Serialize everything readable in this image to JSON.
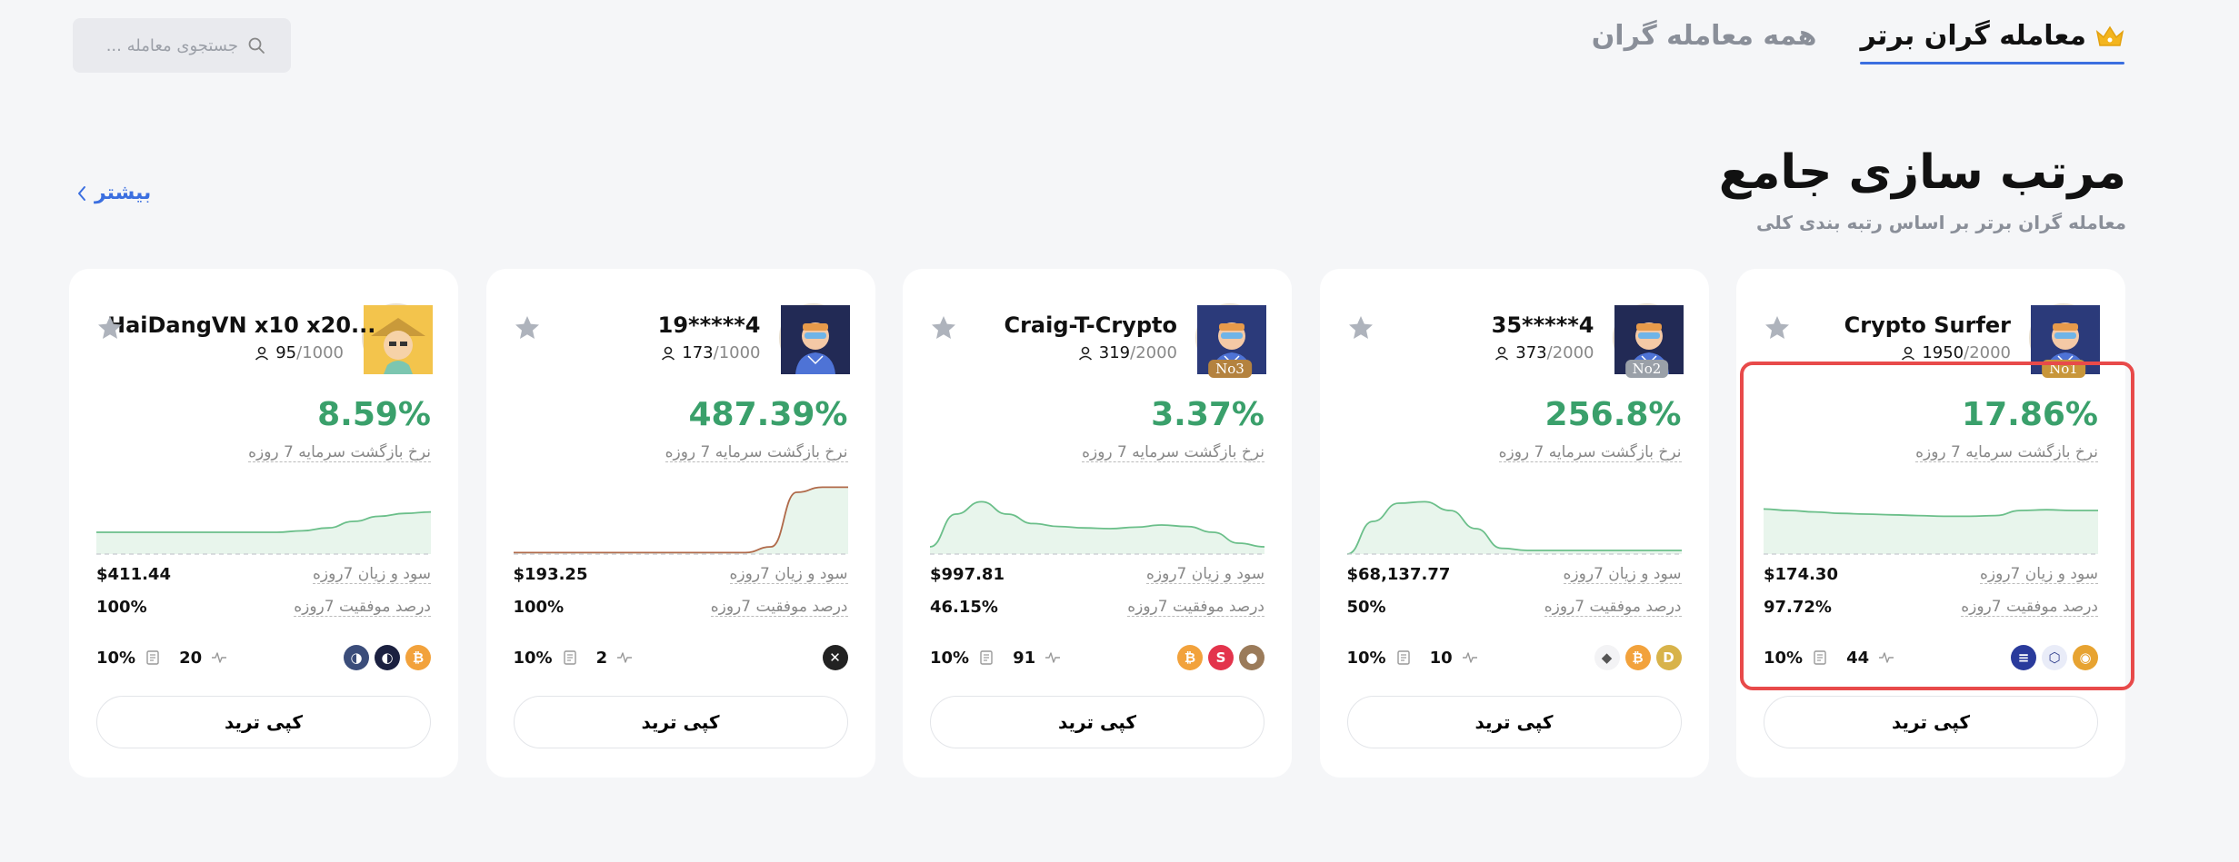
{
  "header": {
    "tabs": [
      {
        "label": "معامله گران برتر",
        "active": true,
        "icon": "crown-icon"
      },
      {
        "label": "همه معامله گران",
        "active": false
      }
    ],
    "search_placeholder": "جستجوی معامله ..."
  },
  "section": {
    "title": "مرتب سازی جامع",
    "subtitle": "معامله گران برتر بر اساس رتبه بندی کلی",
    "more_label": "بیشتر"
  },
  "labels": {
    "roi": "نرخ بازگشت سرمایه 7 روزه",
    "pnl": "سود و زیان 7روزه",
    "win_rate": "درصد موفقیت 7روزه",
    "copy": "کپی ترید"
  },
  "traders": [
    {
      "name": "Crypto Surfer",
      "followers": "1950",
      "max": "/2000",
      "badge": "No1",
      "roi": "17.86%",
      "pnl": "$174.30",
      "win": "97.72%",
      "share": "10%",
      "trades": "44",
      "coins": [
        "ring-coin",
        "shield-coin",
        "solana-coin"
      ],
      "avatar_bg": "#2b3a7a",
      "spark": [
        0.62,
        0.6,
        0.58,
        0.56,
        0.55,
        0.54,
        0.53,
        0.52,
        0.52,
        0.53,
        0.6,
        0.61,
        0.6,
        0.6
      ]
    },
    {
      "name": "35*****4",
      "followers": "373",
      "max": "/2000",
      "badge": "No2",
      "roi": "256.8%",
      "pnl": "$68,137.77",
      "win": "50%",
      "share": "10%",
      "trades": "10",
      "coins": [
        "dogecoin",
        "bitcoin",
        "ethereum"
      ],
      "avatar_bg": "#222a55",
      "spark": [
        0.0,
        0.45,
        0.7,
        0.72,
        0.6,
        0.35,
        0.08,
        0.05,
        0.05,
        0.05,
        0.05,
        0.05,
        0.05,
        0.05
      ]
    },
    {
      "name": "Craig-T-Crypto",
      "followers": "319",
      "max": "/2000",
      "badge": "No3",
      "roi": "3.37%",
      "pnl": "$997.81",
      "win": "46.15%",
      "share": "10%",
      "trades": "91",
      "coins": [
        "avatar-coin",
        "s-coin",
        "bitcoin"
      ],
      "avatar_bg": "#2b3a7a",
      "spark": [
        0.1,
        0.55,
        0.72,
        0.55,
        0.42,
        0.38,
        0.36,
        0.35,
        0.37,
        0.4,
        0.38,
        0.3,
        0.15,
        0.1
      ]
    },
    {
      "name": "19*****4",
      "followers": "173",
      "max": "/1000",
      "badge": "",
      "roi": "487.39%",
      "pnl": "$193.25",
      "win": "100%",
      "share": "10%",
      "trades": "2",
      "coins": [
        "x-coin"
      ],
      "avatar_bg": "#222a55",
      "spark": [
        0.02,
        0.02,
        0.02,
        0.02,
        0.02,
        0.02,
        0.02,
        0.02,
        0.02,
        0.02,
        0.1,
        0.85,
        0.92,
        0.92
      ]
    },
    {
      "name": "HaiDangVN x10 x20...",
      "followers": "95",
      "max": "/1000",
      "badge": "",
      "roi": "8.59%",
      "pnl": "$411.44",
      "win": "100%",
      "share": "10%",
      "trades": "20",
      "coins": [
        "bitcoin",
        "dark-coin",
        "blue-coin"
      ],
      "avatar_bg": "#f0c24a",
      "spark": [
        0.3,
        0.3,
        0.3,
        0.3,
        0.3,
        0.3,
        0.3,
        0.3,
        0.32,
        0.36,
        0.45,
        0.52,
        0.56,
        0.58
      ]
    }
  ]
}
